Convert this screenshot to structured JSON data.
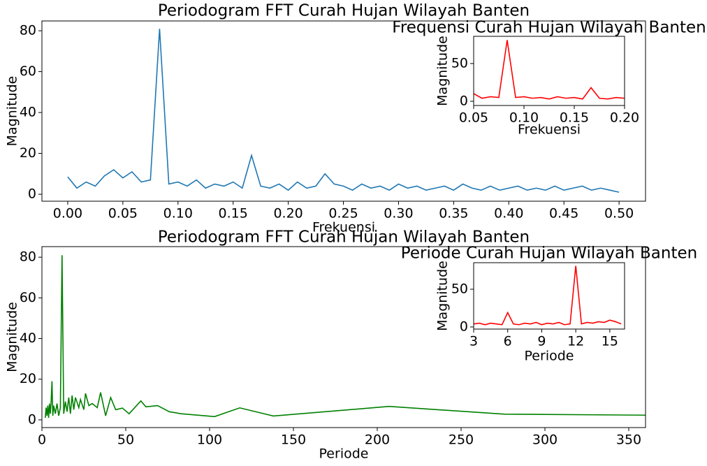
{
  "chart_data": [
    {
      "type": "line",
      "title": "Periodogram FFT Curah Hujan Wilayah Banten",
      "xlabel": "Frekuensi",
      "ylabel": "Magnitude",
      "x": [
        0,
        0.0083,
        0.0167,
        0.025,
        0.0333,
        0.0417,
        0.05,
        0.0583,
        0.0667,
        0.075,
        0.0833,
        0.0917,
        0.1,
        0.1083,
        0.1167,
        0.125,
        0.1333,
        0.1417,
        0.15,
        0.1583,
        0.1667,
        0.175,
        0.1833,
        0.1917,
        0.2,
        0.2083,
        0.2167,
        0.225,
        0.2333,
        0.2417,
        0.25,
        0.2583,
        0.2667,
        0.275,
        0.2833,
        0.2917,
        0.3,
        0.3083,
        0.3167,
        0.325,
        0.3333,
        0.3417,
        0.35,
        0.3583,
        0.3667,
        0.375,
        0.3833,
        0.3917,
        0.4,
        0.4083,
        0.4167,
        0.425,
        0.4333,
        0.4417,
        0.45,
        0.4583,
        0.4667,
        0.475,
        0.4833,
        0.4917,
        0.5
      ],
      "series": [
        {
          "color": "#1f77b4",
          "values": [
            8.5,
            3,
            6,
            4,
            9,
            12,
            8,
            11,
            6,
            7,
            81,
            5,
            6,
            4,
            7,
            3,
            5,
            4,
            6,
            3,
            19,
            4,
            3,
            5,
            2,
            6,
            3,
            4,
            10,
            5,
            4,
            2,
            5,
            3,
            4,
            2,
            5,
            3,
            4,
            2,
            3,
            4,
            2,
            5,
            3,
            2,
            4,
            2,
            3,
            4,
            2,
            3,
            2,
            4,
            2,
            3,
            4,
            2,
            3,
            2,
            1
          ]
        }
      ],
      "xlim": [
        -0.0234,
        0.524
      ],
      "ylim": [
        -3.4,
        84.8
      ],
      "xticks": [
        {
          "value": 0,
          "label": "0.00"
        },
        {
          "value": 0.05,
          "label": "0.05"
        },
        {
          "value": 0.1,
          "label": "0.10"
        },
        {
          "value": 0.15,
          "label": "0.15"
        },
        {
          "value": 0.2,
          "label": "0.20"
        },
        {
          "value": 0.25,
          "label": "0.25"
        },
        {
          "value": 0.3,
          "label": "0.30"
        },
        {
          "value": 0.35,
          "label": "0.35"
        },
        {
          "value": 0.4,
          "label": "0.40"
        },
        {
          "value": 0.45,
          "label": "0.45"
        },
        {
          "value": 0.5,
          "label": "0.50"
        }
      ],
      "yticks": [
        0,
        20,
        40,
        60,
        80
      ]
    },
    {
      "type": "line",
      "title": "Frequensi Curah Hujan Wilayah Banten",
      "xlabel": "Frekuensi",
      "ylabel": "Magnitude",
      "x": [
        0.05,
        0.0583,
        0.0667,
        0.075,
        0.0833,
        0.0917,
        0.1,
        0.1083,
        0.1167,
        0.125,
        0.1333,
        0.1417,
        0.15,
        0.1583,
        0.1667,
        0.175,
        0.1833,
        0.1917,
        0.2
      ],
      "series": [
        {
          "color": "#ff0000",
          "values": [
            10,
            4,
            6,
            5,
            81,
            5,
            6,
            4,
            5,
            3,
            6,
            4,
            5,
            3,
            18,
            4,
            3,
            5,
            4
          ]
        }
      ],
      "xlim": [
        0.05,
        0.2
      ],
      "ylim": [
        -5.6,
        86
      ],
      "xticks": [
        {
          "value": 0.05,
          "label": "0.05"
        },
        {
          "value": 0.1,
          "label": "0.10"
        },
        {
          "value": 0.15,
          "label": "0.15"
        },
        {
          "value": 0.2,
          "label": "0.20"
        }
      ],
      "yticks": [
        0,
        50
      ]
    },
    {
      "type": "line",
      "title": "Periodogram FFT Curah Hujan Wilayah Banten",
      "xlabel": "Periode",
      "ylabel": "Magnitude",
      "x": [
        2,
        2.5,
        3,
        3.5,
        4,
        4.5,
        5,
        5.5,
        6,
        6.5,
        7,
        8,
        9,
        10,
        11,
        12,
        13,
        14,
        15,
        16,
        17,
        18,
        19,
        20,
        22,
        23,
        25,
        26,
        28,
        30,
        33,
        35,
        38,
        41,
        44,
        48,
        52,
        59,
        62,
        69,
        76,
        83,
        103,
        118,
        138,
        207,
        276,
        360
      ],
      "series": [
        {
          "color": "#008000",
          "values": [
            1,
            6,
            2,
            7,
            1,
            8,
            3,
            9,
            19,
            2,
            7,
            3,
            8,
            2,
            6,
            81,
            3,
            9,
            4,
            11,
            3,
            12,
            5,
            11,
            6,
            10,
            5,
            13,
            7,
            8,
            6,
            13.5,
            2,
            11,
            5,
            5.8,
            3,
            9.3,
            6.4,
            7,
            4,
            3,
            1.6,
            5.9,
            1.9,
            6.6,
            2.8,
            2.3
          ]
        }
      ],
      "xlim": [
        0,
        360
      ],
      "ylim": [
        -3.8,
        85.2
      ],
      "xticks": [
        0,
        50,
        100,
        150,
        200,
        250,
        300,
        350
      ],
      "yticks": [
        0,
        20,
        40,
        60,
        80
      ]
    },
    {
      "type": "line",
      "title": "Periode Curah Hujan Wilayah Banten",
      "xlabel": "Periode",
      "ylabel": "Magnitude",
      "x": [
        3,
        3.5,
        4,
        4.5,
        5,
        5.5,
        6,
        6.5,
        7,
        7.5,
        8,
        8.5,
        9,
        9.5,
        10,
        10.5,
        11,
        11.5,
        12,
        12.5,
        13,
        13.5,
        14,
        14.5,
        15,
        15.5,
        16
      ],
      "series": [
        {
          "color": "#ff0000",
          "values": [
            4,
            5,
            3,
            5,
            4,
            3,
            19,
            4,
            3,
            5,
            4,
            6,
            3,
            5,
            4,
            6,
            3,
            4,
            81,
            4,
            6,
            5,
            7,
            6,
            9,
            7,
            4
          ]
        }
      ],
      "xlim": [
        3,
        16.3
      ],
      "ylim": [
        -2.8,
        85.2
      ],
      "xticks": [
        3,
        6,
        9,
        12,
        15
      ],
      "yticks": [
        0,
        50
      ]
    }
  ]
}
